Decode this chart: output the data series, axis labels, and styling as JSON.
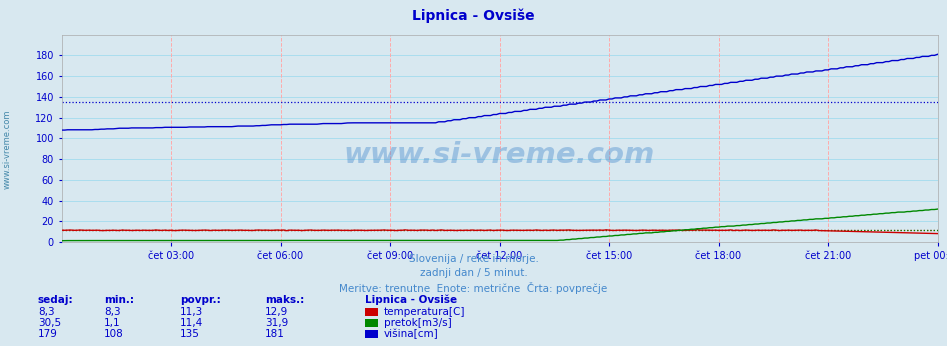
{
  "title": "Lipnica - Ovsiše",
  "title_color": "#0000cc",
  "bg_color": "#d8e8f0",
  "plot_bg_color": "#d8e8f0",
  "grid_color_h": "#aaddee",
  "grid_color_v": "#ffaaaa",
  "ylim": [
    0,
    200
  ],
  "yticks": [
    0,
    20,
    40,
    60,
    80,
    100,
    120,
    140,
    160,
    180
  ],
  "xtick_positions": [
    36,
    72,
    108,
    144,
    180,
    216,
    252,
    288
  ],
  "xtick_labels": [
    "čet 03:00",
    "čet 06:00",
    "čet 09:00",
    "čet 12:00",
    "čet 15:00",
    "čet 18:00",
    "čet 21:00",
    "pet 00:00"
  ],
  "n_points": 289,
  "temp_color": "#cc0000",
  "flow_color": "#008800",
  "height_color": "#0000cc",
  "avg_temp": 11.3,
  "avg_flow": 11.4,
  "avg_height": 135,
  "min_temp": 8.3,
  "max_temp": 12.9,
  "cur_temp": 8.3,
  "min_flow": 1.1,
  "max_flow": 31.9,
  "cur_flow": 30.5,
  "min_height": 108,
  "max_height": 181,
  "cur_height": 179,
  "watermark": "www.si-vreme.com",
  "watermark_color": "#4488cc",
  "watermark_alpha": 0.4,
  "subtitle1": "Slovenija / reke in morje.",
  "subtitle2": "zadnji dan / 5 minut.",
  "subtitle3": "Meritve: trenutne  Enote: metrične  Črta: povprečje",
  "subtitle_color": "#4488cc",
  "legend_title": "Lipnica - Ovsiše",
  "legend_color": "#0000cc",
  "table_headers": [
    "sedaj:",
    "min.:",
    "povpr.:",
    "maks.:"
  ],
  "table_color": "#0000cc",
  "sidebar_text": "www.si-vreme.com",
  "sidebar_color": "#4488aa",
  "row_labels": [
    "temperatura[C]",
    "pretok[m3/s]",
    "višina[cm]"
  ],
  "row_colors": [
    "#cc0000",
    "#008800",
    "#0000cc"
  ],
  "row_cur": [
    "8,3",
    "30,5",
    "179"
  ],
  "row_min": [
    "8,3",
    "1,1",
    "108"
  ],
  "row_avg": [
    "11,3",
    "11,4",
    "135"
  ],
  "row_max": [
    "12,9",
    "31,9",
    "181"
  ]
}
